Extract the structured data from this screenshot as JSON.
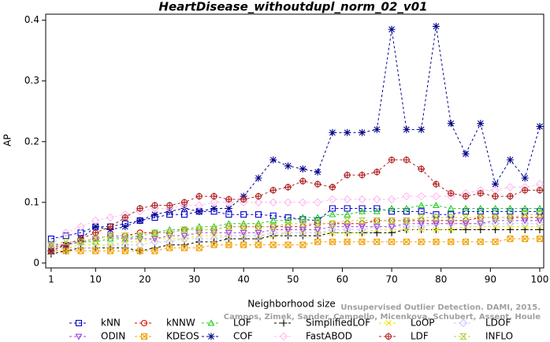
{
  "chart_data": {
    "type": "line",
    "title": "HeartDisease_withoutdupl_norm_02_v01",
    "x_label": "Neighborhood size",
    "y_label": "AP",
    "annotations": [
      "Unsupervised Outlier Detection. DAMI, 2015.",
      "Campos, Zimek, Sander, Campello, Micenkova, Schubert, Assent, Houle"
    ],
    "x": [
      1,
      4,
      7,
      10,
      13,
      16,
      19,
      22,
      25,
      28,
      31,
      34,
      37,
      40,
      43,
      46,
      49,
      52,
      55,
      58,
      61,
      64,
      67,
      70,
      73,
      76,
      79,
      82,
      85,
      88,
      91,
      94,
      97,
      100
    ],
    "xlim": [
      -0.1,
      100.8
    ],
    "xticks": [
      1,
      10,
      20,
      30,
      40,
      50,
      60,
      70,
      80,
      90,
      100
    ],
    "ylim": [
      -0.008,
      0.41
    ],
    "yticks": [
      0,
      0.1,
      0.2,
      0.3,
      0.4
    ],
    "series": [
      {
        "name": "kNN",
        "color": "#0000cc",
        "marker": "square",
        "values": [
          0.04,
          0.045,
          0.05,
          0.06,
          0.06,
          0.065,
          0.07,
          0.075,
          0.08,
          0.08,
          0.085,
          0.085,
          0.08,
          0.08,
          0.08,
          0.078,
          0.075,
          0.072,
          0.07,
          0.09,
          0.09,
          0.09,
          0.09,
          0.085,
          0.085,
          0.085,
          0.08,
          0.08,
          0.085,
          0.085,
          0.085,
          0.085,
          0.085,
          0.085
        ]
      },
      {
        "name": "kNNW",
        "color": "#e00000",
        "marker": "circle",
        "values": [
          0.025,
          0.03,
          0.035,
          0.04,
          0.045,
          0.045,
          0.05,
          0.05,
          0.05,
          0.055,
          0.055,
          0.055,
          0.06,
          0.06,
          0.06,
          0.06,
          0.06,
          0.06,
          0.065,
          0.065,
          0.065,
          0.065,
          0.07,
          0.07,
          0.07,
          0.07,
          0.07,
          0.07,
          0.07,
          0.075,
          0.075,
          0.075,
          0.075,
          0.075
        ]
      },
      {
        "name": "LOF",
        "color": "#22cc22",
        "marker": "triangle",
        "values": [
          0.03,
          0.03,
          0.035,
          0.035,
          0.04,
          0.04,
          0.045,
          0.05,
          0.055,
          0.055,
          0.06,
          0.06,
          0.065,
          0.065,
          0.065,
          0.07,
          0.07,
          0.075,
          0.075,
          0.08,
          0.08,
          0.085,
          0.085,
          0.09,
          0.09,
          0.095,
          0.095,
          0.09,
          0.09,
          0.09,
          0.09,
          0.09,
          0.09,
          0.09
        ]
      },
      {
        "name": "SimplifiedLOF",
        "color": "#000000",
        "marker": "plus",
        "values": [
          0.015,
          0.02,
          0.025,
          0.025,
          0.025,
          0.025,
          0.02,
          0.025,
          0.03,
          0.03,
          0.035,
          0.035,
          0.04,
          0.04,
          0.04,
          0.045,
          0.045,
          0.045,
          0.045,
          0.05,
          0.05,
          0.05,
          0.05,
          0.05,
          0.055,
          0.055,
          0.055,
          0.055,
          0.055,
          0.055,
          0.055,
          0.055,
          0.055,
          0.055
        ]
      },
      {
        "name": "LoOP",
        "color": "#e6e600",
        "marker": "x",
        "values": [
          0.02,
          0.025,
          0.03,
          0.03,
          0.03,
          0.035,
          0.035,
          0.04,
          0.04,
          0.04,
          0.045,
          0.045,
          0.045,
          0.045,
          0.045,
          0.045,
          0.05,
          0.05,
          0.05,
          0.05,
          0.05,
          0.05,
          0.055,
          0.055,
          0.055,
          0.055,
          0.055,
          0.055,
          0.06,
          0.06,
          0.06,
          0.06,
          0.06,
          0.06
        ]
      },
      {
        "name": "LDOF",
        "color": "#c8c8ff",
        "marker": "diamond",
        "values": [
          0.02,
          0.025,
          0.025,
          0.025,
          0.03,
          0.03,
          0.03,
          0.035,
          0.035,
          0.04,
          0.04,
          0.04,
          0.045,
          0.045,
          0.045,
          0.05,
          0.05,
          0.05,
          0.05,
          0.055,
          0.055,
          0.055,
          0.06,
          0.06,
          0.06,
          0.06,
          0.065,
          0.065,
          0.065,
          0.065,
          0.065,
          0.065,
          0.065,
          0.065
        ]
      },
      {
        "name": "ODIN",
        "color": "#a040e0",
        "marker": "tridown",
        "values": [
          0.03,
          0.03,
          0.035,
          0.04,
          0.045,
          0.04,
          0.04,
          0.04,
          0.045,
          0.045,
          0.05,
          0.05,
          0.05,
          0.05,
          0.05,
          0.055,
          0.055,
          0.055,
          0.055,
          0.06,
          0.06,
          0.06,
          0.06,
          0.06,
          0.065,
          0.065,
          0.065,
          0.065,
          0.065,
          0.065,
          0.07,
          0.07,
          0.07,
          0.07
        ]
      },
      {
        "name": "KDEOS",
        "color": "#f0a000",
        "marker": "squarex",
        "values": [
          0.02,
          0.02,
          0.02,
          0.02,
          0.02,
          0.02,
          0.02,
          0.02,
          0.025,
          0.025,
          0.025,
          0.03,
          0.03,
          0.03,
          0.03,
          0.03,
          0.03,
          0.03,
          0.035,
          0.035,
          0.035,
          0.035,
          0.035,
          0.035,
          0.035,
          0.035,
          0.035,
          0.035,
          0.035,
          0.035,
          0.035,
          0.04,
          0.04,
          0.04
        ]
      },
      {
        "name": "COF",
        "color": "#00008b",
        "marker": "asterisk",
        "values": [
          0.02,
          0.03,
          0.04,
          0.06,
          0.055,
          0.06,
          0.07,
          0.08,
          0.085,
          0.09,
          0.085,
          0.09,
          0.09,
          0.11,
          0.14,
          0.17,
          0.16,
          0.155,
          0.15,
          0.215,
          0.215,
          0.215,
          0.22,
          0.385,
          0.22,
          0.22,
          0.39,
          0.23,
          0.18,
          0.23,
          0.13,
          0.17,
          0.14,
          0.225
        ]
      },
      {
        "name": "FastABOD",
        "color": "#ffbbee",
        "marker": "diamond",
        "values": [
          0.03,
          0.05,
          0.06,
          0.07,
          0.075,
          0.08,
          0.085,
          0.09,
          0.09,
          0.095,
          0.095,
          0.1,
          0.1,
          0.1,
          0.1,
          0.1,
          0.1,
          0.1,
          0.1,
          0.105,
          0.105,
          0.105,
          0.105,
          0.105,
          0.11,
          0.11,
          0.11,
          0.11,
          0.115,
          0.12,
          0.12,
          0.125,
          0.125,
          0.13
        ]
      },
      {
        "name": "LDF",
        "color": "#b22222",
        "marker": "circleplus",
        "values": [
          0.02,
          0.03,
          0.04,
          0.05,
          0.06,
          0.075,
          0.09,
          0.095,
          0.095,
          0.1,
          0.11,
          0.11,
          0.105,
          0.105,
          0.11,
          0.12,
          0.125,
          0.135,
          0.13,
          0.125,
          0.145,
          0.145,
          0.15,
          0.17,
          0.17,
          0.155,
          0.13,
          0.115,
          0.11,
          0.115,
          0.11,
          0.11,
          0.12,
          0.12
        ]
      },
      {
        "name": "INFLO",
        "color": "#b0d040",
        "marker": "hourglass",
        "values": [
          0.03,
          0.035,
          0.035,
          0.04,
          0.045,
          0.045,
          0.045,
          0.05,
          0.05,
          0.055,
          0.055,
          0.055,
          0.06,
          0.06,
          0.06,
          0.06,
          0.065,
          0.065,
          0.065,
          0.065,
          0.07,
          0.07,
          0.07,
          0.07,
          0.07,
          0.075,
          0.075,
          0.075,
          0.075,
          0.075,
          0.075,
          0.075,
          0.08,
          0.08
        ]
      }
    ]
  }
}
